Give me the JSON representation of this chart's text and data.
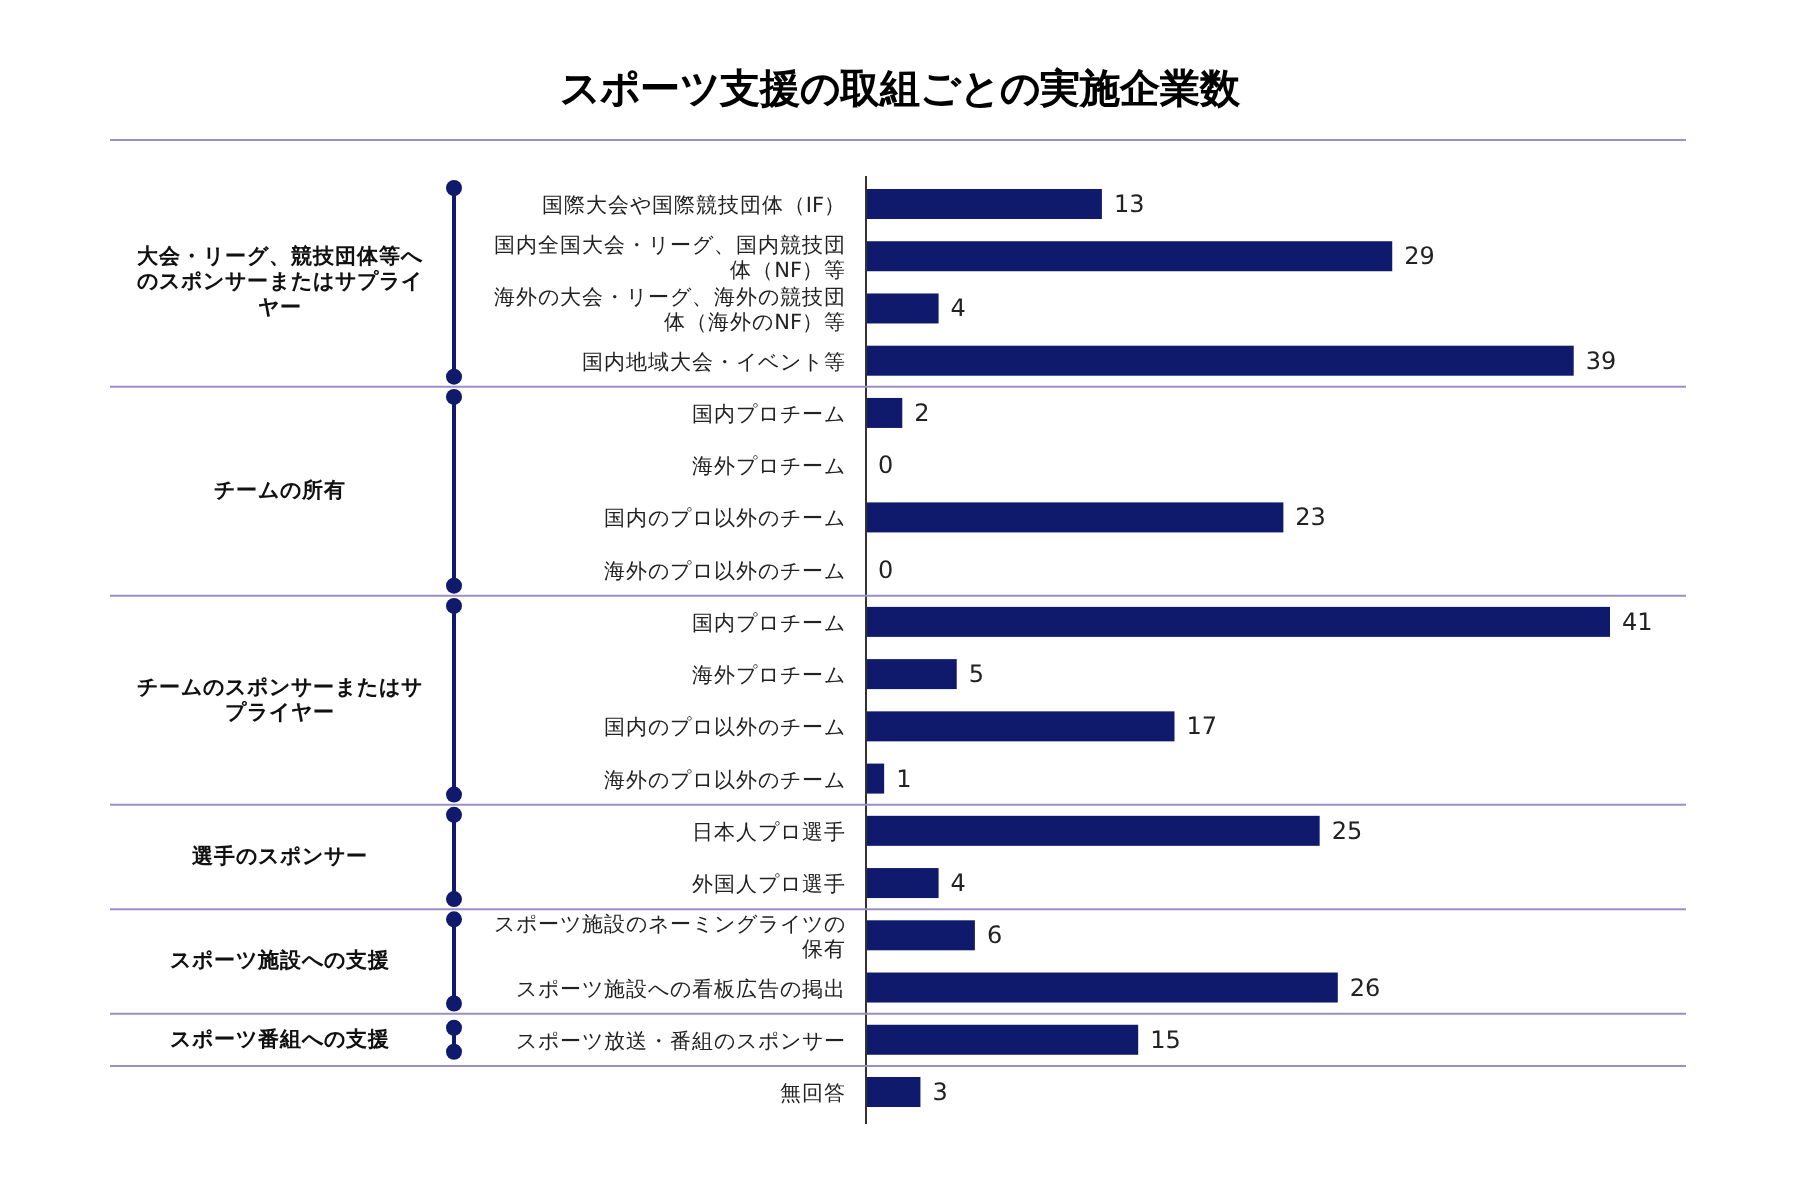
{
  "chart_data": {
    "type": "bar",
    "orientation": "horizontal",
    "title": "スポーツ支援の取組ごとの実施企業数",
    "categories": [
      "国際大会や国際競技団体（IF）",
      "国内全国大会・リーグ、国内競技団体（NF）等",
      "海外の大会・リーグ、海外の競技団体（海外のNF）等",
      "国内地域大会・イベント等",
      "国内プロチーム",
      "海外プロチーム",
      "国内のプロ以外のチーム",
      "海外のプロ以外のチーム",
      "国内プロチーム",
      "海外プロチーム",
      "国内のプロ以外のチーム",
      "海外のプロ以外のチーム",
      "日本人プロ選手",
      "外国人プロ選手",
      "スポーツ施設のネーミングライツの保有",
      "スポーツ施設への看板広告の掲出",
      "スポーツ放送・番組のスポンサー",
      "無回答"
    ],
    "values": [
      13,
      29,
      4,
      39,
      2,
      0,
      23,
      0,
      41,
      5,
      17,
      1,
      25,
      4,
      6,
      26,
      15,
      3
    ],
    "color": "#101a6c",
    "data_labels": true,
    "annotations": [
      "大会・リーグ、競技団体等へのスポンサーまたはサプライヤー",
      "チームの所有",
      "チームのスポンサーまたはサプライヤー",
      "選手のスポンサー",
      "スポーツ施設への支援",
      "スポーツ番組への支援"
    ]
  }
}
